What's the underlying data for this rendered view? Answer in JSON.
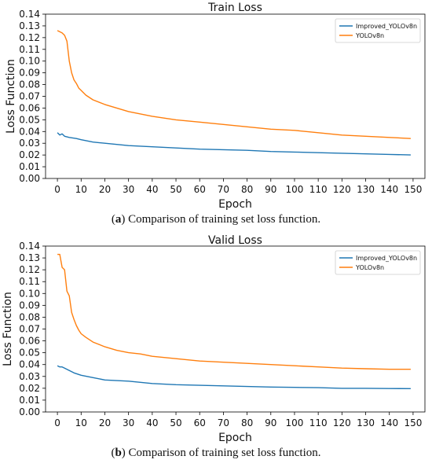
{
  "chart_data": [
    {
      "type": "line",
      "title": "Train Loss",
      "xlabel": "Epoch",
      "ylabel": "Loss Function",
      "xlim": [
        -5,
        155
      ],
      "ylim": [
        0,
        0.14
      ],
      "xticks": [
        0,
        10,
        20,
        30,
        40,
        50,
        60,
        70,
        80,
        90,
        100,
        110,
        120,
        130,
        140,
        150
      ],
      "yticks": [
        0.0,
        0.01,
        0.02,
        0.03,
        0.04,
        0.05,
        0.06,
        0.07,
        0.08,
        0.09,
        0.1,
        0.11,
        0.12,
        0.13,
        0.14
      ],
      "ytick_labels": [
        "0.00",
        "0.01",
        "0.02",
        "0.03",
        "0.04",
        "0.05",
        "0.06",
        "0.07",
        "0.08",
        "0.09",
        "0.10",
        "0.11",
        "0.12",
        "0.13",
        "0.14"
      ],
      "legend_position": "top-right",
      "grid": false,
      "series": [
        {
          "name": "Improved_YOLOv8n",
          "color": "#1f77b4",
          "x": [
            0,
            1,
            2,
            3,
            5,
            8,
            10,
            15,
            20,
            30,
            40,
            50,
            60,
            70,
            80,
            90,
            100,
            110,
            120,
            130,
            140,
            149
          ],
          "values": [
            0.039,
            0.037,
            0.038,
            0.036,
            0.035,
            0.034,
            0.033,
            0.031,
            0.03,
            0.028,
            0.027,
            0.026,
            0.025,
            0.0245,
            0.024,
            0.023,
            0.0225,
            0.022,
            0.0215,
            0.021,
            0.0205,
            0.02
          ]
        },
        {
          "name": "YOLOv8n",
          "color": "#ff7f0e",
          "x": [
            0,
            1,
            2,
            3,
            4,
            5,
            6,
            7,
            8,
            9,
            10,
            12,
            15,
            20,
            25,
            30,
            40,
            50,
            60,
            70,
            80,
            90,
            100,
            110,
            120,
            130,
            140,
            149
          ],
          "values": [
            0.126,
            0.125,
            0.124,
            0.122,
            0.117,
            0.1,
            0.09,
            0.084,
            0.081,
            0.077,
            0.075,
            0.071,
            0.067,
            0.063,
            0.06,
            0.057,
            0.053,
            0.05,
            0.048,
            0.046,
            0.044,
            0.042,
            0.041,
            0.039,
            0.037,
            0.036,
            0.035,
            0.034
          ]
        }
      ]
    },
    {
      "type": "line",
      "title": "Valid Loss",
      "xlabel": "Epoch",
      "ylabel": "Loss Function",
      "xlim": [
        -5,
        155
      ],
      "ylim": [
        0,
        0.14
      ],
      "xticks": [
        0,
        10,
        20,
        30,
        40,
        50,
        60,
        70,
        80,
        90,
        100,
        110,
        120,
        130,
        140,
        150
      ],
      "yticks": [
        0.0,
        0.01,
        0.02,
        0.03,
        0.04,
        0.05,
        0.06,
        0.07,
        0.08,
        0.09,
        0.1,
        0.11,
        0.12,
        0.13,
        0.14
      ],
      "ytick_labels": [
        "0.00",
        "0.01",
        "0.02",
        "0.03",
        "0.04",
        "0.05",
        "0.06",
        "0.07",
        "0.08",
        "0.09",
        "0.10",
        "0.11",
        "0.12",
        "0.13",
        "0.14"
      ],
      "legend_position": "top-right",
      "grid": false,
      "series": [
        {
          "name": "Improved_YOLOv8n",
          "color": "#1f77b4",
          "x": [
            0,
            1,
            2,
            3,
            5,
            7,
            10,
            15,
            20,
            30,
            40,
            50,
            60,
            70,
            80,
            90,
            100,
            110,
            120,
            130,
            140,
            149
          ],
          "values": [
            0.039,
            0.038,
            0.038,
            0.037,
            0.035,
            0.033,
            0.031,
            0.029,
            0.027,
            0.026,
            0.024,
            0.023,
            0.0225,
            0.022,
            0.0215,
            0.021,
            0.0208,
            0.0205,
            0.02,
            0.02,
            0.0198,
            0.0197
          ]
        },
        {
          "name": "YOLOv8n",
          "color": "#ff7f0e",
          "x": [
            0,
            1,
            2,
            3,
            4,
            5,
            6,
            7,
            8,
            9,
            10,
            12,
            15,
            20,
            25,
            30,
            35,
            40,
            50,
            60,
            70,
            80,
            90,
            100,
            110,
            120,
            130,
            140,
            149
          ],
          "values": [
            0.133,
            0.133,
            0.122,
            0.12,
            0.102,
            0.098,
            0.084,
            0.078,
            0.073,
            0.069,
            0.066,
            0.063,
            0.059,
            0.055,
            0.052,
            0.05,
            0.049,
            0.047,
            0.045,
            0.043,
            0.042,
            0.041,
            0.04,
            0.039,
            0.038,
            0.037,
            0.0365,
            0.036,
            0.036
          ]
        }
      ]
    }
  ],
  "captions": [
    {
      "label": "a",
      "text": " Comparison of training set loss function."
    },
    {
      "label": "b",
      "text": " Comparison of training set loss function."
    }
  ]
}
